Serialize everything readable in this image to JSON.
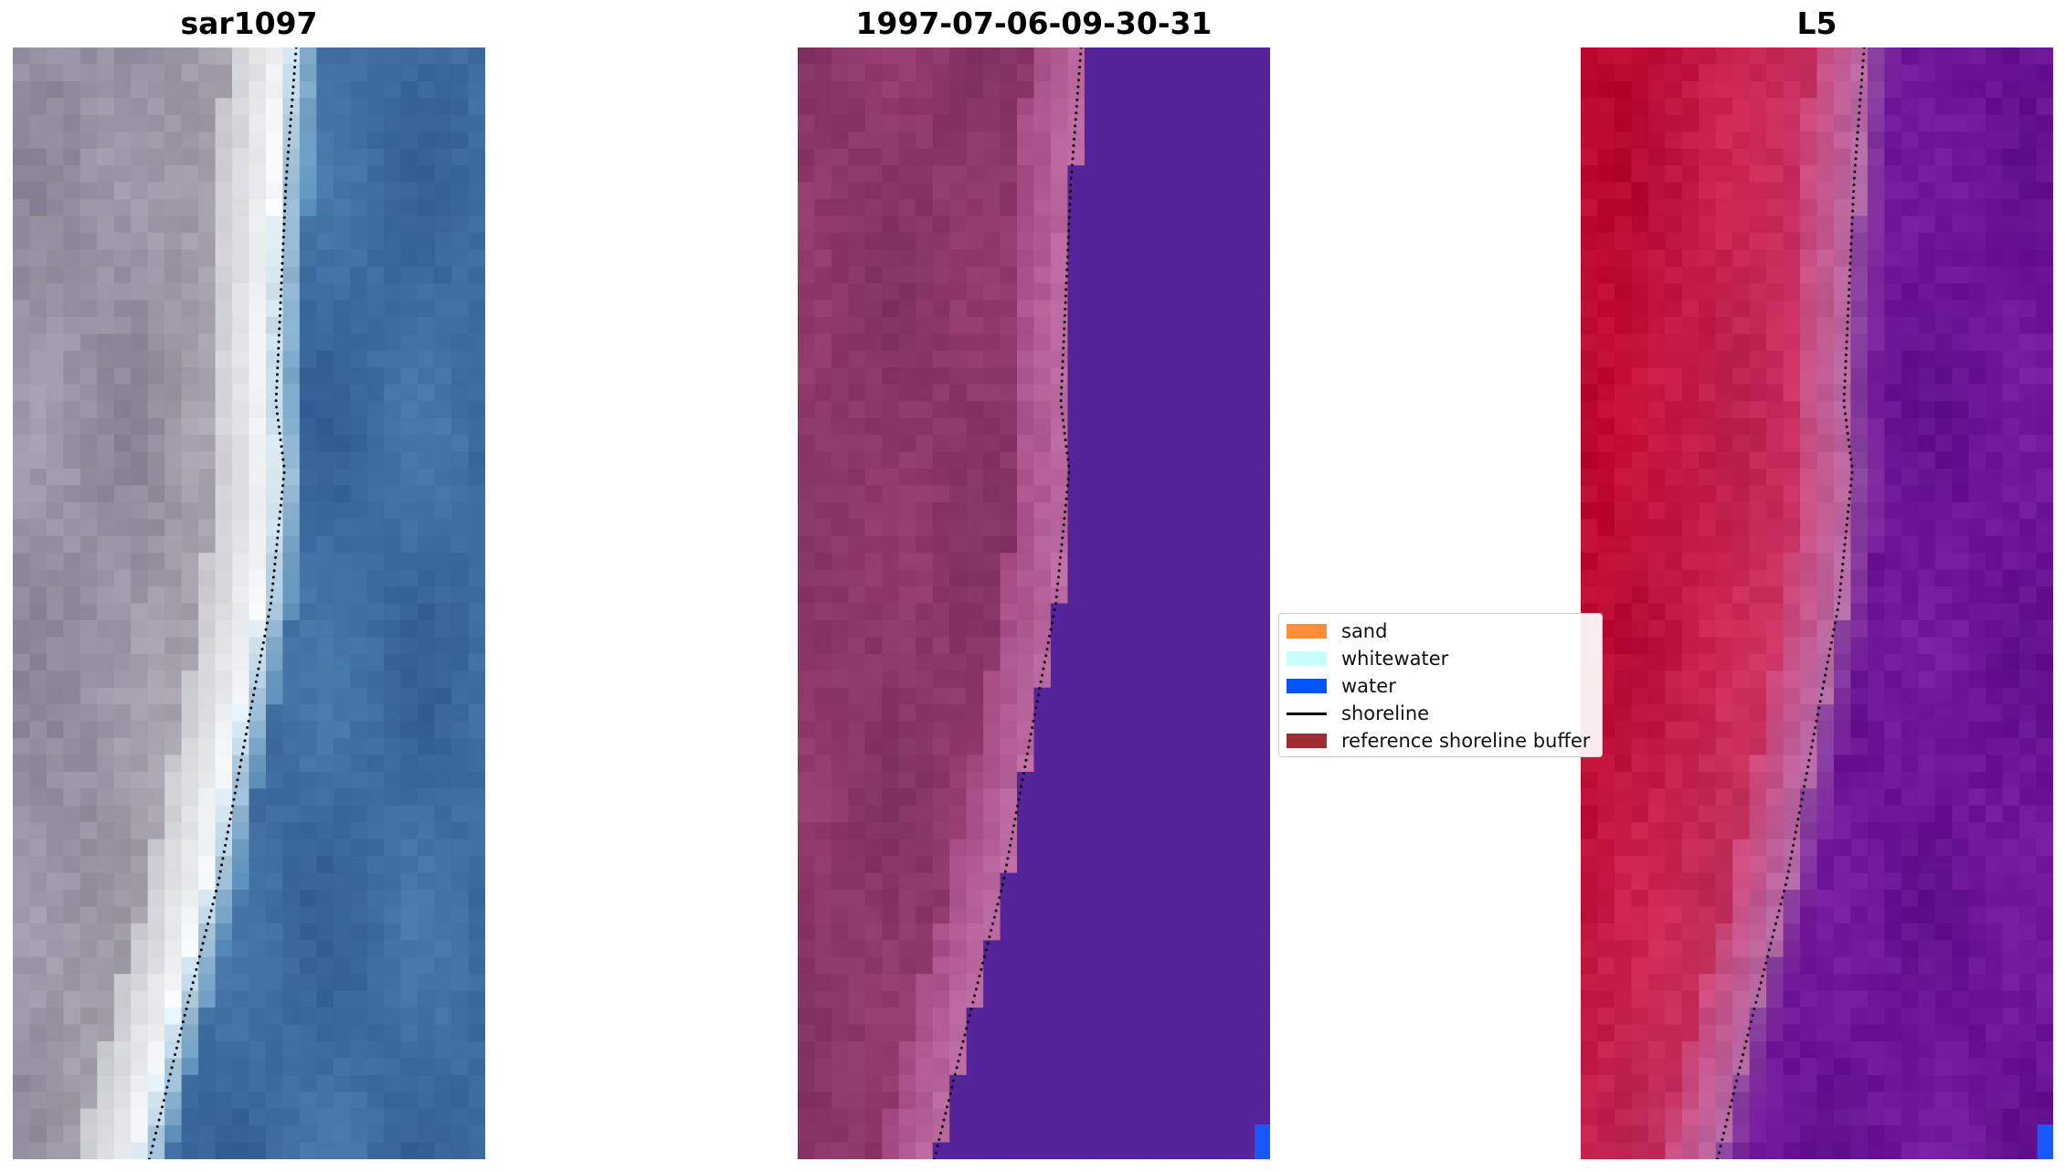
{
  "panels": [
    {
      "title": "sar1097",
      "style": "rgb"
    },
    {
      "title": "1997-07-06-09-30-31",
      "style": "classified"
    },
    {
      "title": "L5",
      "style": "index"
    }
  ],
  "legend": {
    "items": [
      {
        "label": "sand",
        "type": "patch",
        "color": "#ff8c3b"
      },
      {
        "label": "whitewater",
        "type": "patch",
        "color": "#c8ffff"
      },
      {
        "label": "water",
        "type": "patch",
        "color": "#0055ff"
      },
      {
        "label": "shoreline",
        "type": "line",
        "color": "#000000"
      },
      {
        "label": "reference shoreline buffer",
        "type": "patch",
        "color": "#9b2d33"
      }
    ]
  },
  "colors": {
    "water_class": "#55249a",
    "water_marker": "#1a57ff",
    "shoreline_dots": "#000000"
  }
}
